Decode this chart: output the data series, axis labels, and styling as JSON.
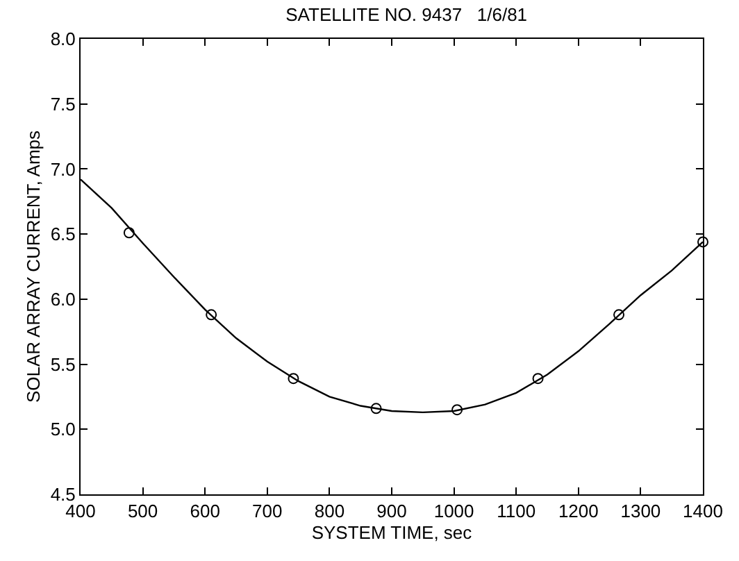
{
  "chart_data": {
    "type": "line",
    "title": "SATELLITE NO. 9437   1/6/81",
    "xlabel": "SYSTEM TIME, sec",
    "ylabel": "SOLAR ARRAY CURRENT, Amps",
    "xlim": [
      400,
      1400
    ],
    "xticks": [
      400,
      500,
      600,
      700,
      800,
      900,
      1000,
      1100,
      1200,
      1300,
      1400
    ],
    "ylim": [
      4.5,
      8.0
    ],
    "yticks": [
      {
        "value": 4.5,
        "label": "4.5"
      },
      {
        "value": 5.0,
        "label": "5.0"
      },
      {
        "value": 5.5,
        "label": "5.5"
      },
      {
        "value": 6.0,
        "label": "6.0"
      },
      {
        "value": 6.5,
        "label": "6.5"
      },
      {
        "value": 7.0,
        "label": "7.0"
      },
      {
        "value": 7.5,
        "label": "7.5"
      },
      {
        "value": 8.0,
        "label": "8.0"
      }
    ],
    "series": [
      {
        "color": "#000000",
        "line_style": "solid",
        "marker": "none",
        "x": [
          400,
          450,
          500,
          550,
          600,
          650,
          700,
          750,
          800,
          850,
          900,
          950,
          1000,
          1050,
          1100,
          1150,
          1200,
          1250,
          1300,
          1350,
          1400
        ],
        "values": [
          6.92,
          6.7,
          6.43,
          6.17,
          5.92,
          5.7,
          5.52,
          5.37,
          5.25,
          5.18,
          5.14,
          5.13,
          5.14,
          5.19,
          5.28,
          5.42,
          5.6,
          5.81,
          6.03,
          6.22,
          6.44
        ]
      },
      {
        "type": "scatter",
        "color": "#000000",
        "marker": "circle",
        "x": [
          478,
          610,
          742,
          875,
          1005,
          1135,
          1265,
          1400
        ],
        "values": [
          6.51,
          5.88,
          5.39,
          5.16,
          5.15,
          5.39,
          5.88,
          6.44
        ]
      }
    ]
  }
}
